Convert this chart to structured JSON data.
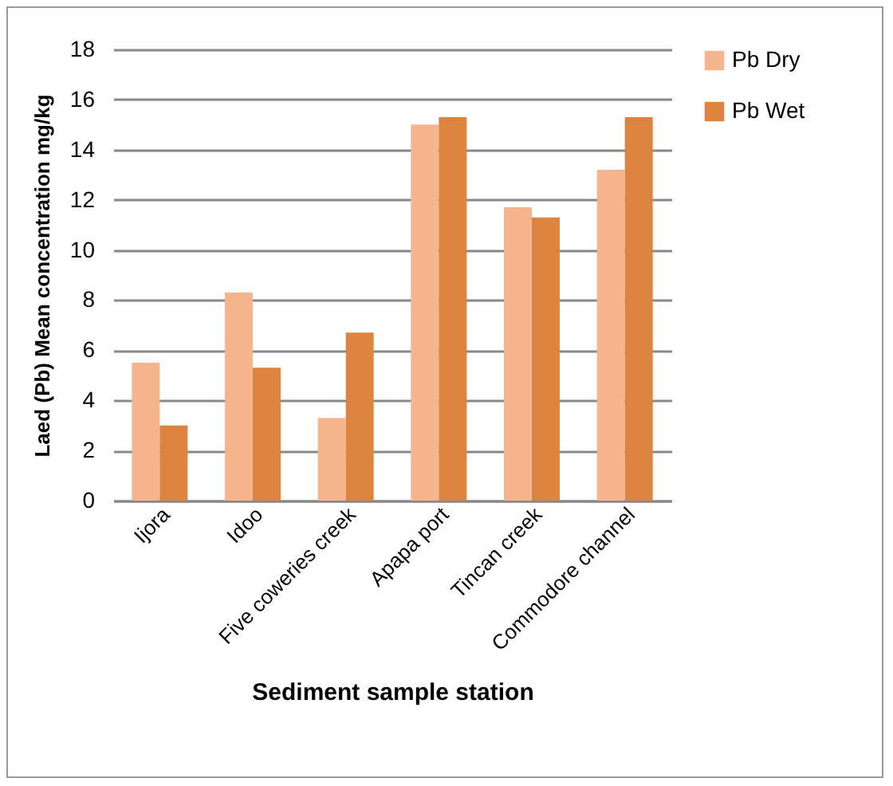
{
  "chart_data": {
    "type": "bar",
    "xlabel": "Sediment sample station",
    "ylabel": "Laed (Pb) Mean concentration mg/kg",
    "categories": [
      "Ijora",
      "Idoo",
      "Five coweries creek",
      "Apapa port",
      "Tincan creek",
      "Commodore channel"
    ],
    "series": [
      {
        "name": "Pb Dry",
        "color": "#f7b58e",
        "values": [
          5.5,
          8.3,
          3.3,
          15.0,
          11.7,
          13.2
        ]
      },
      {
        "name": "Pb Wet",
        "color": "#dd8440",
        "values": [
          3.0,
          5.3,
          6.7,
          15.3,
          11.3,
          15.3
        ]
      }
    ],
    "ylim": [
      0,
      18
    ],
    "yticks": [
      0,
      2,
      4,
      6,
      8,
      10,
      12,
      14,
      16,
      18
    ],
    "grid": "y",
    "legend": "right"
  }
}
